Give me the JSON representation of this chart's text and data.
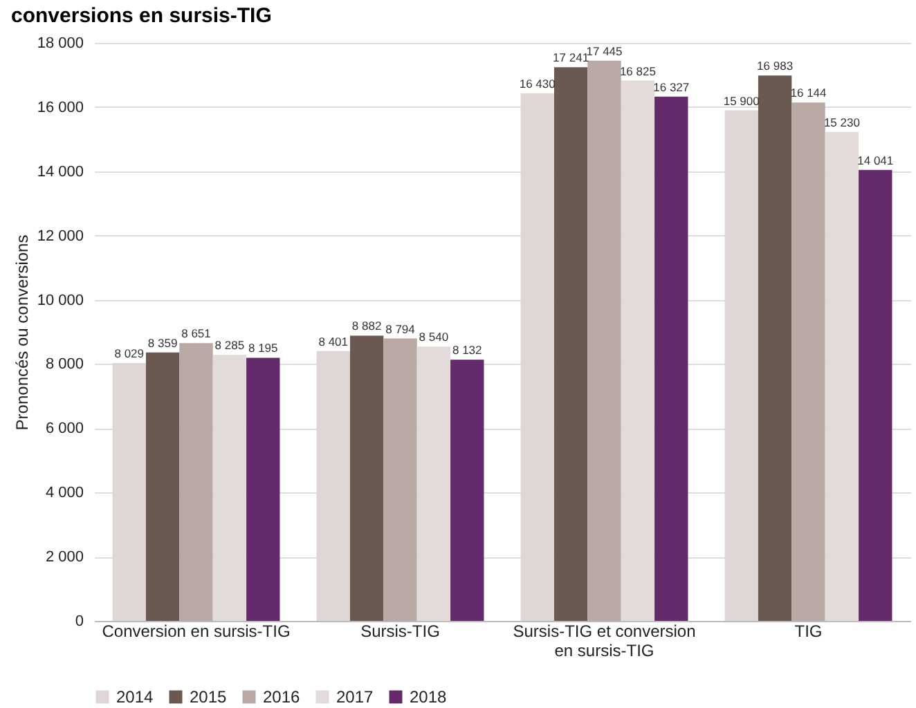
{
  "chart_data": {
    "type": "bar",
    "title": "conversions en sursis-TIG",
    "ylabel": "Prononcés ou conversions",
    "categories": [
      "Conversion en sursis-TIG",
      "Sursis-TIG",
      "Sursis-TIG et conversion en sursis-TIG",
      "TIG"
    ],
    "series": [
      {
        "name": "2014",
        "color": "#e0d6d5",
        "values": [
          8029,
          8401,
          16430,
          15900
        ]
      },
      {
        "name": "2015",
        "color": "#6a5951",
        "values": [
          8359,
          8882,
          17241,
          16983
        ]
      },
      {
        "name": "2016",
        "color": "#b8a9a5",
        "values": [
          8651,
          8794,
          17445,
          16144
        ]
      },
      {
        "name": "2017",
        "color": "#e3dada",
        "values": [
          8285,
          8540,
          16825,
          15230
        ]
      },
      {
        "name": "2018",
        "color": "#652a6b",
        "values": [
          8195,
          8132,
          16327,
          14041
        ]
      }
    ],
    "ylim": [
      0,
      18000
    ],
    "yticks": [
      0,
      2000,
      4000,
      6000,
      8000,
      10000,
      12000,
      14000,
      16000,
      18000
    ],
    "grid": "y",
    "legend": "bottom",
    "data_labels": true
  }
}
